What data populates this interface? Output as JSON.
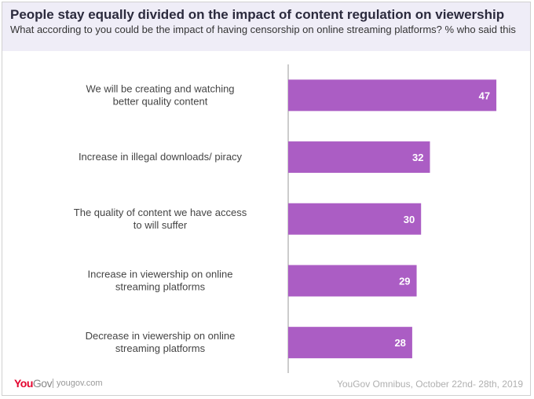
{
  "title": "People stay equally divided on the impact of content regulation on viewership",
  "subtitle": "What according to you could be the impact of having censorship on online streaming platforms? % who said this",
  "footer": {
    "logo": "YouGov",
    "site": "yougov.com",
    "source": "YouGov Omnibus, October 22nd- 28th, 2019"
  },
  "colors": {
    "bar": "#ab5dc4",
    "header_bg": "#efedf7",
    "logo_red": "#e4032e"
  },
  "chart_data": {
    "type": "bar",
    "orientation": "horizontal",
    "categories": [
      "We will be creating and watching better quality content",
      "Increase in illegal downloads/ piracy",
      "The quality of content we have access to will suffer",
      "Increase in viewership on online streaming platforms",
      "Decrease in viewership on online streaming platforms"
    ],
    "values": [
      47,
      32,
      30,
      29,
      28
    ],
    "data_labels": true,
    "grid": false
  }
}
